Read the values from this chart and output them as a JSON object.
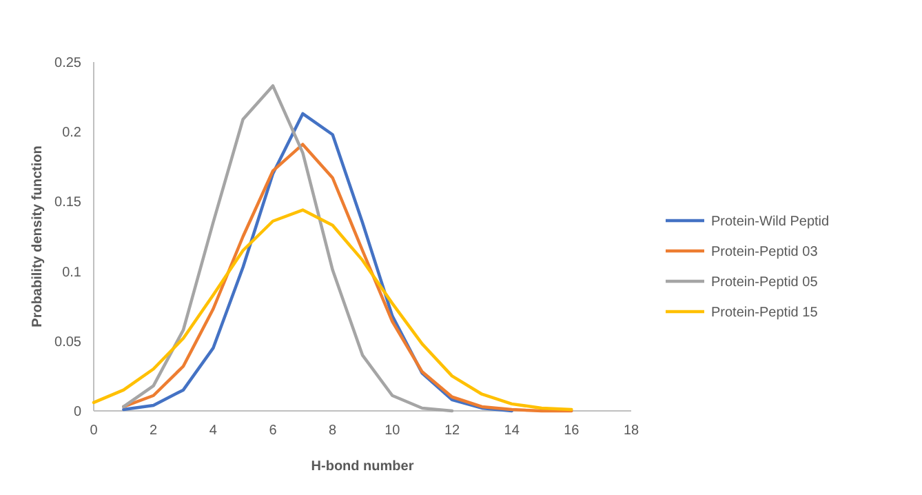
{
  "chart_data": {
    "type": "line",
    "xlabel": "H-bond number",
    "ylabel": "Probability density function",
    "xlim": [
      0,
      18
    ],
    "xticks": [
      0,
      2,
      4,
      6,
      8,
      10,
      12,
      14,
      16,
      18
    ],
    "ylim": [
      0,
      0.25
    ],
    "yticks": [
      {
        "value": 0,
        "label": "0"
      },
      {
        "value": 0.05,
        "label": "0.05"
      },
      {
        "value": 0.1,
        "label": "0.1"
      },
      {
        "value": 0.15,
        "label": "0.15"
      },
      {
        "value": 0.2,
        "label": "0.2"
      },
      {
        "value": 0.25,
        "label": "0.25"
      }
    ],
    "grid": false,
    "legend": "right",
    "marker": "none",
    "line_style": "solid",
    "series": [
      {
        "name": "Protein-Wild Peptid",
        "color": "#4472c4",
        "x": [
          1,
          2,
          3,
          4,
          5,
          6,
          7,
          8,
          9,
          10,
          11,
          12,
          13,
          14
        ],
        "values": [
          0.001,
          0.004,
          0.015,
          0.045,
          0.103,
          0.17,
          0.213,
          0.198,
          0.135,
          0.068,
          0.027,
          0.008,
          0.002,
          0
        ]
      },
      {
        "name": "Protein-Peptid 03",
        "color": "#ed7d31",
        "x": [
          1,
          2,
          3,
          4,
          5,
          6,
          7,
          8,
          9,
          10,
          11,
          12,
          13,
          14,
          15,
          16
        ],
        "values": [
          0.003,
          0.011,
          0.032,
          0.073,
          0.125,
          0.172,
          0.191,
          0.167,
          0.115,
          0.064,
          0.028,
          0.01,
          0.003,
          0.001,
          0,
          0
        ]
      },
      {
        "name": "Protein-Peptid 05",
        "color": "#a5a5a5",
        "x": [
          1,
          2,
          3,
          4,
          5,
          6,
          7,
          8,
          9,
          10,
          11,
          12
        ],
        "values": [
          0.003,
          0.018,
          0.058,
          0.135,
          0.209,
          0.233,
          0.185,
          0.101,
          0.04,
          0.011,
          0.002,
          0
        ]
      },
      {
        "name": "Protein-Peptid 15",
        "color": "#ffc000",
        "x": [
          0,
          1,
          2,
          3,
          4,
          5,
          6,
          7,
          8,
          9,
          10,
          11,
          12,
          13,
          14,
          15,
          16
        ],
        "values": [
          0.006,
          0.015,
          0.03,
          0.052,
          0.083,
          0.115,
          0.136,
          0.144,
          0.133,
          0.108,
          0.077,
          0.048,
          0.025,
          0.012,
          0.005,
          0.002,
          0.001
        ]
      }
    ]
  }
}
